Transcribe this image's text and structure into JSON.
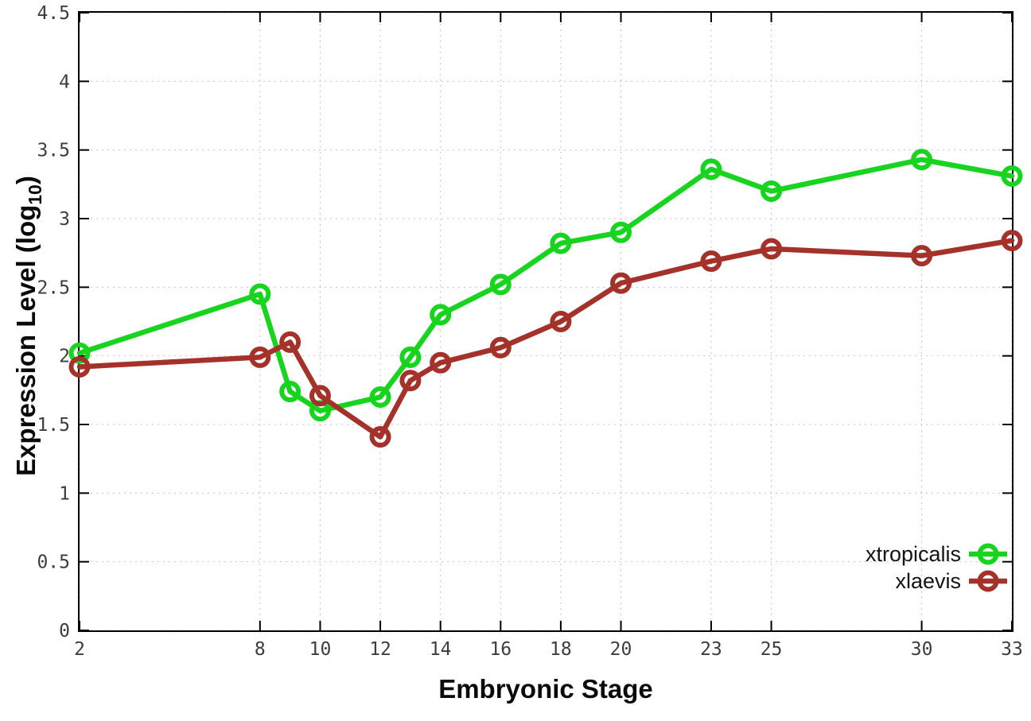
{
  "chart_data": {
    "type": "line",
    "title": "",
    "xlabel": "Embryonic Stage",
    "ylabel_parts": [
      "Expression Level (log",
      "10",
      ")"
    ],
    "x": [
      2,
      8,
      9,
      10,
      12,
      13,
      14,
      16,
      18,
      20,
      23,
      25,
      30,
      33
    ],
    "x_tick_labels": [
      "2",
      "8",
      "10",
      "12",
      "14",
      "16",
      "18",
      "20",
      "23",
      "25",
      "30",
      "33"
    ],
    "x_tick_values": [
      2,
      8,
      10,
      12,
      14,
      16,
      18,
      20,
      23,
      25,
      30,
      33
    ],
    "y_tick_labels": [
      "0",
      "0.5",
      "1",
      "1.5",
      "2",
      "2.5",
      "3",
      "3.5",
      "4",
      "4.5"
    ],
    "y_tick_values": [
      0,
      0.5,
      1,
      1.5,
      2,
      2.5,
      3,
      3.5,
      4,
      4.5
    ],
    "xlim": [
      2,
      33
    ],
    "ylim": [
      0,
      4.5
    ],
    "grid": true,
    "legend_position": "inside-bottom-right",
    "series": [
      {
        "name": "xtropicalis",
        "color": "#17d41e",
        "values": [
          2.02,
          2.45,
          1.74,
          1.6,
          1.7,
          1.99,
          2.3,
          2.52,
          2.82,
          2.9,
          3.36,
          3.2,
          3.43,
          3.31
        ]
      },
      {
        "name": "xlaevis",
        "color": "#a5322a",
        "values": [
          1.92,
          1.99,
          2.1,
          1.71,
          1.41,
          1.82,
          1.95,
          2.06,
          2.25,
          2.53,
          2.69,
          2.78,
          2.73,
          2.84
        ]
      }
    ]
  },
  "style": {
    "grid_color": "#c3c3c3",
    "axis_color": "#000000",
    "tick_label_color": "#3d3d3d",
    "background": "#ffffff"
  }
}
